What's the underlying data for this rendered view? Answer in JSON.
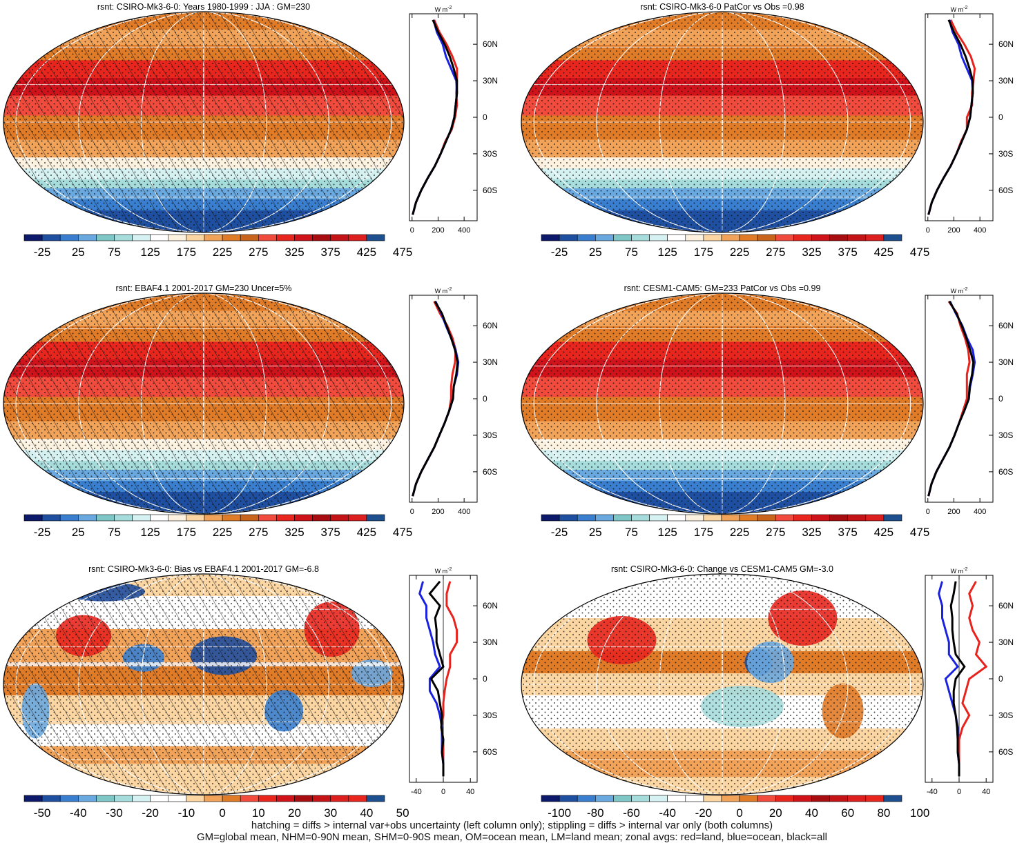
{
  "figure": {
    "footer_line1": "hatching = diffs > internal var+obs uncertainty (left column only); stippling = diffs > internal var only (both columns)",
    "footer_line2": "GM=global mean, NHM=0-90N mean, SHM=0-90S mean, OM=ocean mean, LM=land mean; zonal avgs: red=land, blue=ocean, black=all"
  },
  "chart_data": [
    {
      "type": "heatmap",
      "title": "rsnt: CSIRO-Mk3-6-0: Years 1980-1999 : JJA : GM=230",
      "colorbar_labels": [
        "-25",
        "25",
        "75",
        "125",
        "175",
        "225",
        "275",
        "325",
        "375",
        "425",
        "475"
      ],
      "overlay": "hatching+stippling",
      "zonal_profile": {
        "unit_label": "W m-2",
        "xticks": [
          "0",
          "200",
          "400"
        ],
        "yticks": [
          "60N",
          "30N",
          "0",
          "30S",
          "60S"
        ],
        "xlim": [
          -20,
          500
        ],
        "lat": [
          80,
          70,
          60,
          50,
          40,
          30,
          20,
          10,
          0,
          -10,
          -20,
          -30,
          -40,
          -50,
          -60,
          -70,
          -80
        ],
        "all": [
          160,
          200,
          250,
          290,
          320,
          345,
          345,
          335,
          325,
          300,
          260,
          220,
          175,
          120,
          70,
          30,
          5
        ],
        "ocean": [
          165,
          190,
          235,
          260,
          300,
          340,
          345,
          335,
          325,
          300,
          260,
          220,
          175,
          120,
          70,
          30,
          5
        ],
        "land": [
          170,
          210,
          265,
          310,
          345,
          345,
          340,
          345,
          330,
          305,
          255,
          220,
          175,
          120,
          70,
          30,
          5
        ]
      }
    },
    {
      "type": "heatmap",
      "title": "rsnt: CSIRO-Mk3-6-0 PatCor vs Obs =0.98",
      "colorbar_labels": [
        "-25",
        "25",
        "75",
        "125",
        "175",
        "225",
        "275",
        "325",
        "375",
        "425",
        "475"
      ],
      "overlay": "stippling",
      "zonal_profile": {
        "unit_label": "W m-2",
        "xticks": [
          "0",
          "200",
          "400"
        ],
        "yticks": [
          "60N",
          "30N",
          "0",
          "30S",
          "60S"
        ],
        "xlim": [
          -20,
          500
        ],
        "lat": [
          80,
          70,
          60,
          50,
          40,
          30,
          20,
          10,
          0,
          -10,
          -20,
          -30,
          -40,
          -50,
          -60,
          -70,
          -80
        ],
        "all": [
          160,
          200,
          250,
          290,
          320,
          345,
          345,
          335,
          325,
          300,
          260,
          220,
          175,
          120,
          70,
          30,
          5
        ],
        "ocean": [
          165,
          190,
          235,
          260,
          300,
          340,
          345,
          335,
          325,
          300,
          260,
          220,
          175,
          120,
          70,
          30,
          5
        ],
        "land": [
          175,
          220,
          280,
          330,
          360,
          350,
          340,
          340,
          300,
          300,
          255,
          220,
          175,
          120,
          70,
          30,
          5
        ]
      }
    },
    {
      "type": "heatmap",
      "title": "rsnt: EBAF4.1 2001-2017 GM=230 Uncer=5%",
      "colorbar_labels": [
        "-25",
        "25",
        "75",
        "125",
        "175",
        "225",
        "275",
        "325",
        "375",
        "425",
        "475"
      ],
      "overlay": "hatching+stippling",
      "zonal_profile": {
        "unit_label": "W m-2",
        "xticks": [
          "0",
          "200",
          "400"
        ],
        "yticks": [
          "60N",
          "30N",
          "0",
          "30S",
          "60S"
        ],
        "xlim": [
          -20,
          500
        ],
        "lat": [
          80,
          70,
          60,
          50,
          40,
          30,
          20,
          10,
          0,
          -10,
          -20,
          -30,
          -40,
          -50,
          -60,
          -70,
          -80
        ],
        "all": [
          175,
          230,
          265,
          300,
          330,
          350,
          340,
          320,
          315,
          285,
          250,
          210,
          170,
          120,
          70,
          30,
          5
        ],
        "ocean": [
          180,
          225,
          260,
          300,
          335,
          355,
          345,
          320,
          315,
          285,
          250,
          210,
          170,
          120,
          70,
          30,
          5
        ],
        "land": [
          170,
          215,
          270,
          310,
          335,
          330,
          310,
          300,
          300,
          285,
          250,
          210,
          170,
          120,
          70,
          30,
          5
        ]
      }
    },
    {
      "type": "heatmap",
      "title": "rsnt: CESM1-CAM5: GM=233 PatCor vs Obs =0.99",
      "colorbar_labels": [
        "-25",
        "25",
        "75",
        "125",
        "175",
        "225",
        "275",
        "325",
        "375",
        "425",
        "475"
      ],
      "overlay": "stippling",
      "zonal_profile": {
        "unit_label": "W m-2",
        "xticks": [
          "0",
          "200",
          "400"
        ],
        "yticks": [
          "60N",
          "30N",
          "0",
          "30S",
          "60S"
        ],
        "xlim": [
          -20,
          500
        ],
        "lat": [
          80,
          70,
          60,
          50,
          40,
          30,
          20,
          10,
          0,
          -10,
          -20,
          -30,
          -40,
          -50,
          -60,
          -70,
          -80
        ],
        "all": [
          165,
          220,
          260,
          295,
          325,
          350,
          340,
          320,
          315,
          280,
          240,
          205,
          165,
          115,
          65,
          28,
          5
        ],
        "ocean": [
          170,
          215,
          265,
          300,
          345,
          360,
          345,
          325,
          315,
          280,
          240,
          205,
          165,
          115,
          65,
          28,
          5
        ],
        "land": [
          160,
          225,
          250,
          285,
          310,
          320,
          300,
          300,
          300,
          270,
          240,
          205,
          165,
          115,
          65,
          28,
          5
        ]
      }
    },
    {
      "type": "heatmap",
      "title": "rsnt: CSIRO-Mk3-6-0: Bias vs EBAF4.1 2001-2017 GM=-6.8",
      "colorbar_labels": [
        "-50",
        "-40",
        "-30",
        "-20",
        "-10",
        "0",
        "10",
        "20",
        "30",
        "40",
        "50"
      ],
      "overlay": "hatching+stippling",
      "zonal_profile": {
        "unit_label": "W m-2",
        "xticks": [
          "-40",
          "0",
          "40"
        ],
        "yticks": [
          "60N",
          "30N",
          "0",
          "30S",
          "60S"
        ],
        "xlim": [
          -50,
          50
        ],
        "lat": [
          80,
          70,
          60,
          50,
          40,
          30,
          20,
          10,
          0,
          -10,
          -20,
          -30,
          -40,
          -50,
          -60,
          -70,
          -80
        ],
        "all": [
          -5,
          -20,
          -5,
          -12,
          -10,
          -10,
          -5,
          0,
          -18,
          -8,
          -5,
          -2,
          -3,
          0,
          -2,
          0,
          0
        ],
        "ocean": [
          -30,
          -35,
          -25,
          -25,
          -20,
          -15,
          -12,
          -5,
          -20,
          -20,
          -10,
          -5,
          -2,
          -2,
          -2,
          0,
          0
        ],
        "land": [
          10,
          5,
          5,
          15,
          20,
          20,
          10,
          10,
          5,
          2,
          0,
          0,
          -3,
          0,
          0,
          0,
          0
        ]
      }
    },
    {
      "type": "heatmap",
      "title": "rsnt: CSIRO-Mk3-6-0: Change vs CESM1-CAM5 GM=-3.0",
      "colorbar_labels": [
        "-100",
        "-80",
        "-60",
        "-40",
        "-20",
        "0",
        "20",
        "40",
        "60",
        "80",
        "100"
      ],
      "overlay": "stippling",
      "zonal_profile": {
        "unit_label": "W m-2",
        "xticks": [
          "-40",
          "0",
          "40"
        ],
        "yticks": [
          "60N",
          "30N",
          "0",
          "30S",
          "60S"
        ],
        "xlim": [
          -50,
          50
        ],
        "lat": [
          80,
          70,
          60,
          50,
          40,
          30,
          20,
          10,
          0,
          -10,
          -20,
          -30,
          -40,
          -50,
          -60,
          -70,
          -80
        ],
        "all": [
          -5,
          -8,
          -12,
          -10,
          -10,
          -8,
          -5,
          8,
          -5,
          -8,
          -8,
          -5,
          -3,
          -2,
          -2,
          0,
          0
        ],
        "ocean": [
          -25,
          -30,
          -25,
          -25,
          -20,
          -15,
          -15,
          -2,
          -20,
          -15,
          -10,
          -5,
          -2,
          -2,
          -2,
          0,
          0
        ],
        "land": [
          25,
          15,
          20,
          15,
          20,
          30,
          25,
          40,
          15,
          10,
          5,
          15,
          5,
          0,
          0,
          0,
          0
        ]
      }
    }
  ]
}
